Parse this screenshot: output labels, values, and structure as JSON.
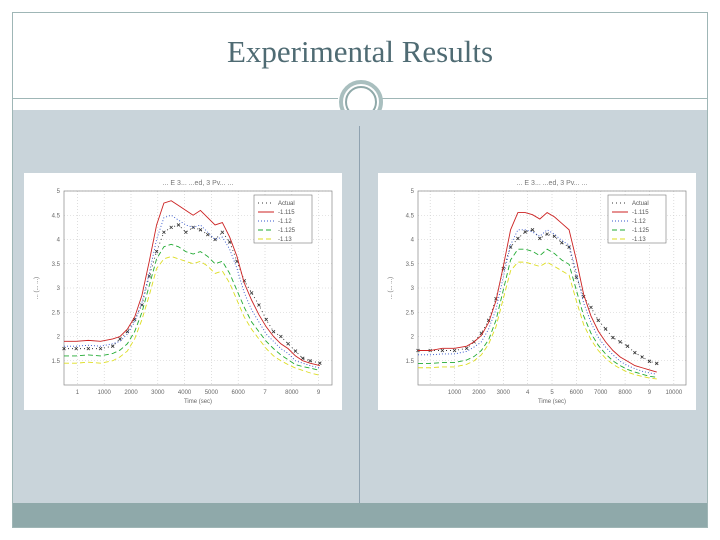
{
  "slide": {
    "title": "Experimental Results",
    "colors": {
      "accent": "#9fb6b6",
      "content_bg": "#c9d4da",
      "footer": "#8fa9aa",
      "title": "#4f6b73"
    }
  },
  "chart_data": [
    {
      "type": "line",
      "title": "... E 3... ...ed, 3 Pv... ...",
      "xlabel": "Time (sec)",
      "ylabel": "... (... ...)",
      "xlim": [
        0,
        11000
      ],
      "ylim": [
        1.0,
        5.0
      ],
      "x_tick_labels": [
        "1",
        "1000",
        "2000",
        "3000",
        "4000",
        "5000",
        "6000",
        "7",
        "8000",
        "9"
      ],
      "y_tick_labels": [
        "1.5",
        "2",
        "2.5",
        "3",
        "3.5",
        "4",
        "4.5",
        "5"
      ],
      "grid": true,
      "legend_position": "top-right",
      "x": [
        0,
        500,
        1000,
        1500,
        2000,
        2300,
        2600,
        2900,
        3200,
        3500,
        3800,
        4100,
        4400,
        4700,
        5000,
        5300,
        5600,
        5900,
        6200,
        6500,
        6800,
        7100,
        7400,
        7700,
        8000,
        8300,
        8600,
        8900,
        9200,
        9500,
        9800,
        10100,
        10500
      ],
      "series": [
        {
          "name": "Actual",
          "color": "#333333",
          "dash": "1 3",
          "marker": "x",
          "values": [
            1.75,
            1.75,
            1.75,
            1.75,
            1.8,
            1.95,
            2.1,
            2.35,
            2.65,
            3.25,
            3.75,
            4.15,
            4.25,
            4.3,
            4.15,
            4.25,
            4.2,
            4.1,
            4.0,
            4.15,
            3.95,
            3.55,
            3.15,
            2.9,
            2.65,
            2.35,
            2.1,
            2.0,
            1.85,
            1.7,
            1.55,
            1.5,
            1.45
          ]
        },
        {
          "name": "-1.115",
          "color": "#cc2222",
          "dash": "",
          "values": [
            1.9,
            1.9,
            1.92,
            1.9,
            1.95,
            2.0,
            2.15,
            2.4,
            2.85,
            3.55,
            4.3,
            4.75,
            4.8,
            4.7,
            4.6,
            4.5,
            4.6,
            4.45,
            4.3,
            4.35,
            4.05,
            3.65,
            3.1,
            2.75,
            2.45,
            2.2,
            2.0,
            1.85,
            1.75,
            1.6,
            1.5,
            1.45,
            1.4
          ]
        },
        {
          "name": "-1.12",
          "color": "#3355cc",
          "dash": "1 2",
          "values": [
            1.8,
            1.8,
            1.82,
            1.8,
            1.85,
            1.9,
            2.05,
            2.3,
            2.7,
            3.3,
            4.0,
            4.45,
            4.5,
            4.4,
            4.3,
            4.25,
            4.3,
            4.15,
            4.0,
            4.05,
            3.8,
            3.4,
            2.9,
            2.55,
            2.3,
            2.05,
            1.9,
            1.75,
            1.65,
            1.5,
            1.45,
            1.4,
            1.35
          ]
        },
        {
          "name": "-1.125",
          "color": "#22aa33",
          "dash": "5 3",
          "values": [
            1.6,
            1.6,
            1.62,
            1.6,
            1.65,
            1.72,
            1.85,
            2.1,
            2.5,
            3.05,
            3.6,
            3.85,
            3.9,
            3.85,
            3.75,
            3.7,
            3.75,
            3.65,
            3.5,
            3.55,
            3.3,
            2.95,
            2.6,
            2.3,
            2.1,
            1.9,
            1.75,
            1.62,
            1.52,
            1.42,
            1.38,
            1.35,
            1.3
          ]
        },
        {
          "name": "-1.13",
          "color": "#dddd22",
          "dash": "5 3",
          "values": [
            1.45,
            1.45,
            1.47,
            1.45,
            1.5,
            1.58,
            1.7,
            1.95,
            2.35,
            2.85,
            3.4,
            3.6,
            3.65,
            3.6,
            3.55,
            3.5,
            3.55,
            3.45,
            3.3,
            3.35,
            3.1,
            2.75,
            2.4,
            2.15,
            1.95,
            1.75,
            1.6,
            1.5,
            1.42,
            1.35,
            1.3,
            1.25,
            1.2
          ]
        }
      ]
    },
    {
      "type": "line",
      "title": "... E 3... ...ed, 3 Pv... ...",
      "xlabel": "Time (sec)",
      "ylabel": "... (... ...)",
      "xlim": [
        0,
        11000
      ],
      "ylim": [
        1.0,
        5.5
      ],
      "x_tick_labels": [
        "",
        "1000",
        "2000",
        "3000",
        "4",
        "5",
        "6000",
        "7000",
        "8000",
        "9",
        "10000"
      ],
      "y_tick_labels": [
        "1.5",
        "2",
        "2.5",
        "3",
        "3.5",
        "4",
        "4.5",
        "5"
      ],
      "grid": true,
      "legend_position": "top-right",
      "x": [
        0,
        500,
        1000,
        1500,
        2000,
        2300,
        2600,
        2900,
        3200,
        3500,
        3800,
        4100,
        4400,
        4700,
        5000,
        5300,
        5600,
        5900,
        6200,
        6500,
        6800,
        7100,
        7400,
        7700,
        8000,
        8300,
        8600,
        8900,
        9200,
        9500,
        9800
      ],
      "series": [
        {
          "name": "Actual",
          "color": "#333333",
          "dash": "1 3",
          "marker": "x",
          "values": [
            1.8,
            1.8,
            1.8,
            1.8,
            1.85,
            2.0,
            2.2,
            2.5,
            3.0,
            3.7,
            4.2,
            4.4,
            4.55,
            4.6,
            4.4,
            4.5,
            4.45,
            4.3,
            4.2,
            3.5,
            3.05,
            2.8,
            2.5,
            2.3,
            2.1,
            2.0,
            1.9,
            1.75,
            1.65,
            1.55,
            1.5
          ]
        },
        {
          "name": "-1.115",
          "color": "#cc2222",
          "dash": "",
          "values": [
            1.8,
            1.8,
            1.85,
            1.85,
            1.9,
            2.0,
            2.15,
            2.45,
            2.95,
            3.75,
            4.6,
            5.0,
            5.0,
            4.95,
            4.85,
            5.0,
            4.9,
            4.75,
            4.6,
            3.9,
            3.1,
            2.6,
            2.25,
            2.0,
            1.8,
            1.65,
            1.55,
            1.45,
            1.4,
            1.35,
            1.3
          ]
        },
        {
          "name": "-1.12",
          "color": "#3355cc",
          "dash": "1 2",
          "values": [
            1.7,
            1.7,
            1.72,
            1.72,
            1.78,
            1.88,
            2.0,
            2.3,
            2.75,
            3.5,
            4.25,
            4.6,
            4.6,
            4.55,
            4.45,
            4.6,
            4.5,
            4.35,
            4.25,
            3.6,
            2.9,
            2.45,
            2.1,
            1.88,
            1.7,
            1.55,
            1.45,
            1.38,
            1.32,
            1.28,
            1.25
          ]
        },
        {
          "name": "-1.125",
          "color": "#22aa33",
          "dash": "5 3",
          "values": [
            1.5,
            1.5,
            1.52,
            1.52,
            1.58,
            1.66,
            1.8,
            2.05,
            2.5,
            3.2,
            3.9,
            4.15,
            4.15,
            4.1,
            4.0,
            4.15,
            4.05,
            3.9,
            3.8,
            3.2,
            2.6,
            2.2,
            1.92,
            1.72,
            1.56,
            1.45,
            1.36,
            1.3,
            1.25,
            1.2,
            1.18
          ]
        },
        {
          "name": "-1.13",
          "color": "#dddd22",
          "dash": "5 3",
          "values": [
            1.4,
            1.4,
            1.42,
            1.42,
            1.48,
            1.56,
            1.7,
            1.95,
            2.35,
            3.0,
            3.65,
            3.85,
            3.85,
            3.8,
            3.75,
            3.85,
            3.75,
            3.65,
            3.55,
            2.95,
            2.4,
            2.05,
            1.8,
            1.62,
            1.48,
            1.38,
            1.3,
            1.24,
            1.2,
            1.16,
            1.14
          ]
        }
      ]
    }
  ]
}
